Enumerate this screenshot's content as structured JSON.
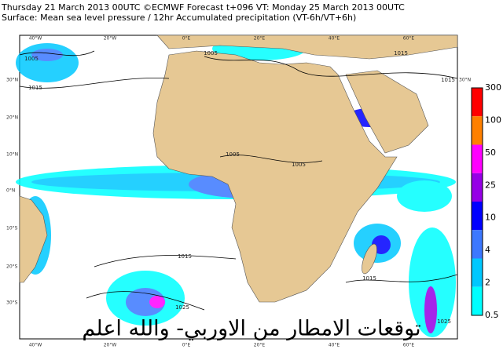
{
  "header": {
    "line1": "Thursday 21 March 2013 00UTC ©ECMWF Forecast t+096 VT: Monday 25 March 2013 00UTC",
    "line2": "Surface: Mean sea level pressure / 12hr Accumulated precipitation (VT-6h/VT+6h)"
  },
  "map": {
    "lon_labels": [
      "40°W",
      "20°W",
      "0°E",
      "20°E",
      "40°E",
      "60°E"
    ],
    "lat_labels": [
      "30°N",
      "20°N",
      "10°N",
      "0°N",
      "10°S",
      "20°S",
      "30°S"
    ],
    "right_lat_label": "30°N",
    "isobar_labels": [
      "1005",
      "1015",
      "1005",
      "1015",
      "1015",
      "1005",
      "1005",
      "1015",
      "1015",
      "1025",
      "1025"
    ],
    "caption": "توقعات الامطار من الاوربي- والله اعلم"
  },
  "legend": {
    "labels": [
      "300",
      "100",
      "50",
      "25",
      "10",
      "4",
      "2",
      "0.5"
    ],
    "colors": [
      "#ff0000",
      "#ff8000",
      "#ff00ff",
      "#9600e6",
      "#0000ff",
      "#3c78ff",
      "#00c8ff",
      "#00ffff"
    ]
  }
}
